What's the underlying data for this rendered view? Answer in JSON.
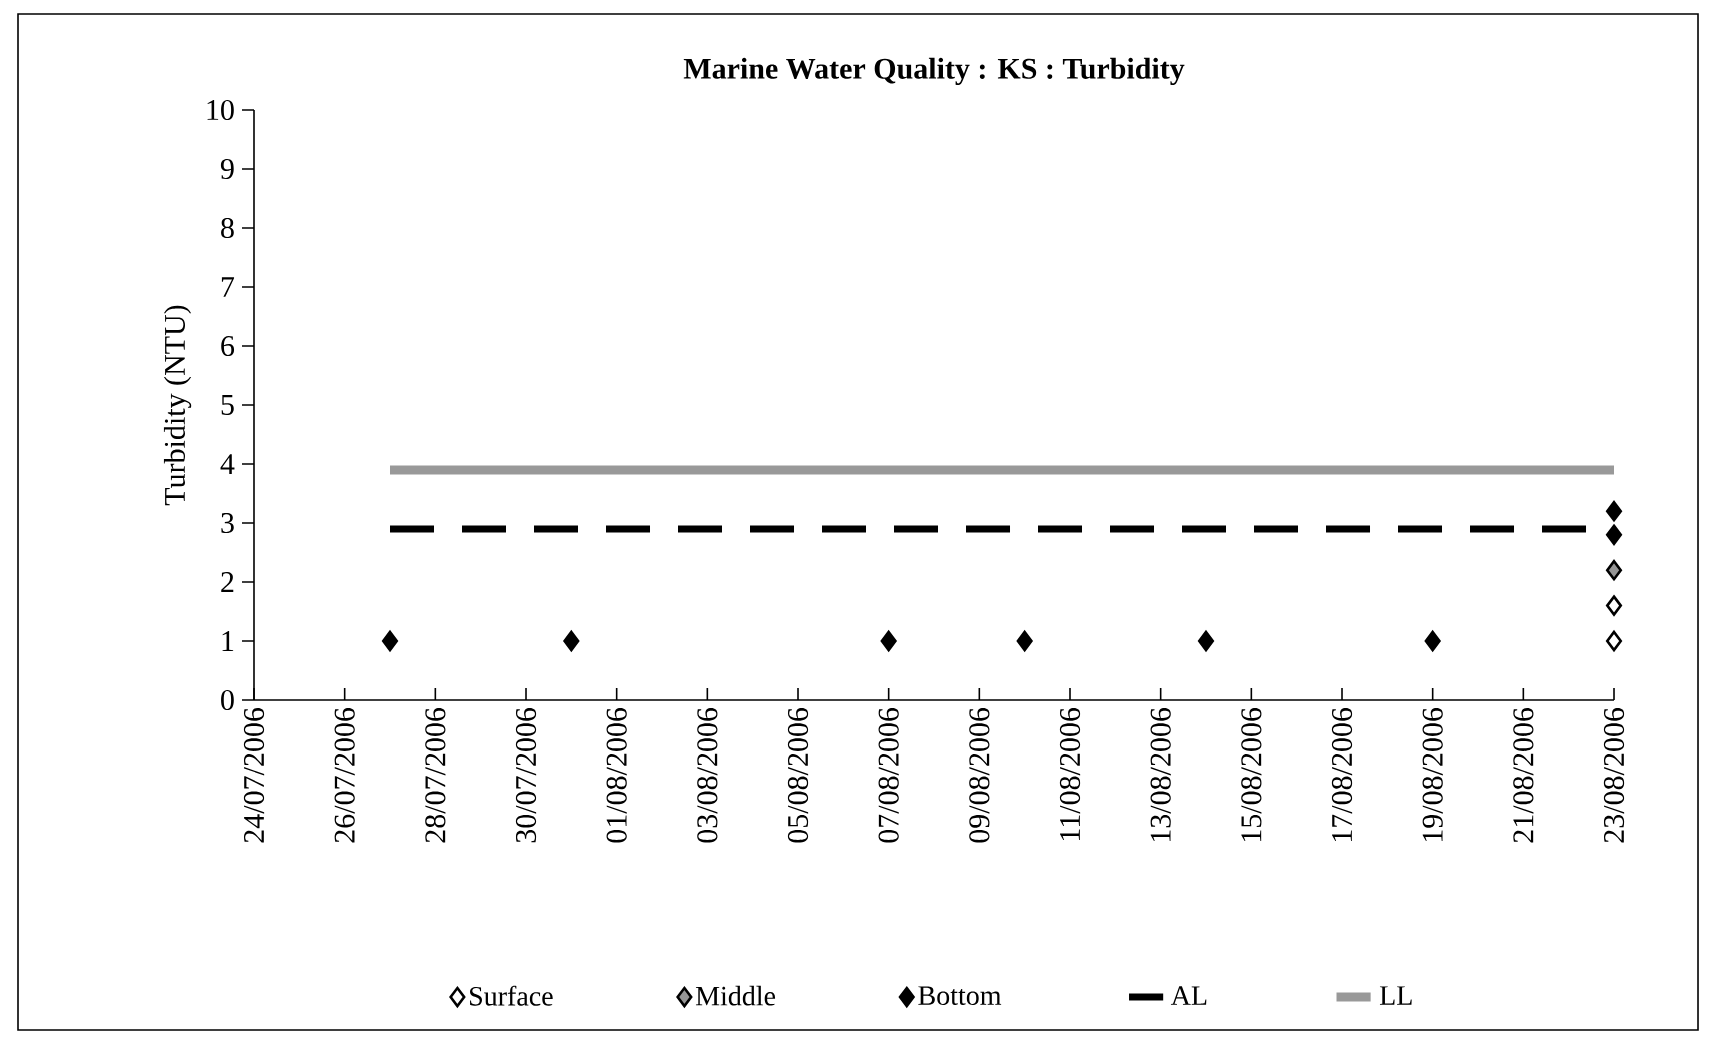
{
  "chart_data": {
    "type": "scatter",
    "title": "Marine Water Quality : KS  : Turbidity",
    "ylabel": "Turbidity (NTU)",
    "xlim": [
      "2006-07-24",
      "2006-08-23"
    ],
    "xticks": [
      {
        "value": "2006-07-24",
        "label": "24/07/2006"
      },
      {
        "value": "2006-07-26",
        "label": "26/07/2006"
      },
      {
        "value": "2006-07-28",
        "label": "28/07/2006"
      },
      {
        "value": "2006-07-30",
        "label": "30/07/2006"
      },
      {
        "value": "2006-08-01",
        "label": "01/08/2006"
      },
      {
        "value": "2006-08-03",
        "label": "03/08/2006"
      },
      {
        "value": "2006-08-05",
        "label": "05/08/2006"
      },
      {
        "value": "2006-08-07",
        "label": "07/08/2006"
      },
      {
        "value": "2006-08-09",
        "label": "09/08/2006"
      },
      {
        "value": "2006-08-11",
        "label": "11/08/2006"
      },
      {
        "value": "2006-08-13",
        "label": "13/08/2006"
      },
      {
        "value": "2006-08-15",
        "label": "15/08/2006"
      },
      {
        "value": "2006-08-17",
        "label": "17/08/2006"
      },
      {
        "value": "2006-08-19",
        "label": "19/08/2006"
      },
      {
        "value": "2006-08-21",
        "label": "21/08/2006"
      },
      {
        "value": "2006-08-23",
        "label": "23/08/2006"
      }
    ],
    "ylim": [
      0,
      10
    ],
    "yticks": [
      0,
      1,
      2,
      3,
      4,
      5,
      6,
      7,
      8,
      9,
      10
    ],
    "legend": "bottom",
    "marker": "diamond",
    "series": [
      {
        "name": "Surface",
        "color": "#ffffff",
        "x": [
          "2006-08-23",
          "2006-08-23"
        ],
        "values": [
          1.6,
          1.0
        ]
      },
      {
        "name": "Middle",
        "color": "#969696",
        "x": [
          "2006-08-23"
        ],
        "values": [
          2.2
        ]
      },
      {
        "name": "Bottom",
        "color": "#000000",
        "x": [
          "2006-07-27",
          "2006-07-31",
          "2006-08-07",
          "2006-08-10",
          "2006-08-14",
          "2006-08-19",
          "2006-08-23",
          "2006-08-23"
        ],
        "values": [
          1,
          1,
          1,
          1,
          1,
          1,
          3.2,
          2.8
        ]
      },
      {
        "name": "AL",
        "type": "line",
        "color": "#000000",
        "line_style": "dashed",
        "marker": "none",
        "x": [
          "2006-07-27",
          "2006-08-23"
        ],
        "values": [
          2.9,
          2.9
        ]
      },
      {
        "name": "LL",
        "type": "line",
        "color": "#999999",
        "line_style": "solid",
        "marker": "none",
        "x": [
          "2006-07-27",
          "2006-08-23"
        ],
        "values": [
          3.9,
          3.9
        ]
      }
    ]
  }
}
